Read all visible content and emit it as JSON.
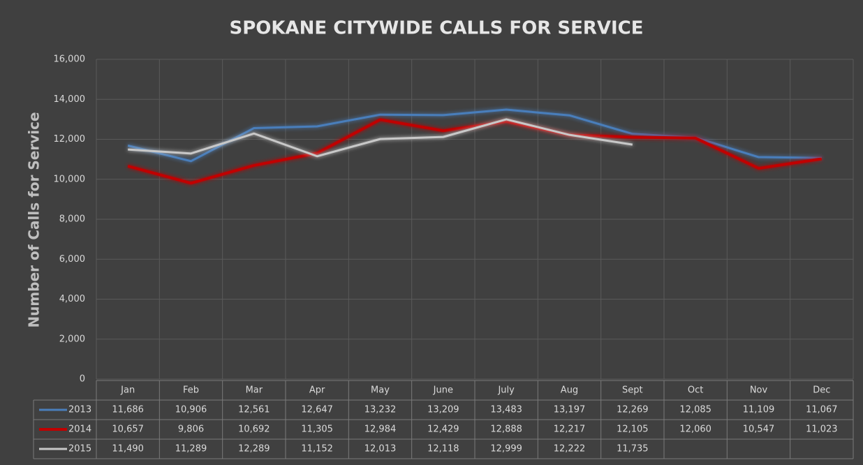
{
  "chart_data": {
    "type": "line",
    "title": "SPOKANE CITYWIDE CALLS FOR SERVICE",
    "y_label": "Number of Calls for Service",
    "categories": [
      "Jan",
      "Feb",
      "Mar",
      "Apr",
      "May",
      "June",
      "July",
      "Aug",
      "Sept",
      "Oct",
      "Nov",
      "Dec"
    ],
    "series": [
      {
        "name": "2013",
        "color": "#4a7ebb",
        "values": [
          11686,
          10906,
          12561,
          12647,
          13232,
          13209,
          13483,
          13197,
          12269,
          12085,
          11109,
          11067
        ],
        "value_labels": [
          "11,686",
          "10,906",
          "12,561",
          "12,647",
          "13,232",
          "13,209",
          "13,483",
          "13,197",
          "12,269",
          "12,085",
          "11,109",
          "11,067"
        ]
      },
      {
        "name": "2014",
        "color": "#c00000",
        "values": [
          10657,
          9806,
          10692,
          11305,
          12984,
          12429,
          12888,
          12217,
          12105,
          12060,
          10547,
          11023
        ],
        "value_labels": [
          "10,657",
          "9,806",
          "10,692",
          "11,305",
          "12,984",
          "12,429",
          "12,888",
          "12,217",
          "12,105",
          "12,060",
          "10,547",
          "11,023"
        ]
      },
      {
        "name": "2015",
        "color": "#c8c8c8",
        "values": [
          11490,
          11289,
          12289,
          11152,
          12013,
          12118,
          12999,
          12222,
          11735,
          null,
          null,
          null
        ],
        "value_labels": [
          "11,490",
          "11,289",
          "12,289",
          "11,152",
          "12,013",
          "12,118",
          "12,999",
          "12,222",
          "11,735",
          null,
          null,
          null
        ]
      }
    ],
    "ylim": [
      0,
      16000
    ],
    "yticks": [
      0,
      {
        "value": 2000,
        "label": "2,000"
      },
      {
        "value": 4000,
        "label": "4,000"
      },
      {
        "value": 6000,
        "label": "6,000"
      },
      {
        "value": 8000,
        "label": "8,000"
      },
      {
        "value": 10000,
        "label": "10,000"
      },
      {
        "value": 12000,
        "label": "12,000"
      },
      {
        "value": 14000,
        "label": "14,000"
      },
      {
        "value": 16000,
        "label": "16,000"
      }
    ],
    "grid": true
  }
}
